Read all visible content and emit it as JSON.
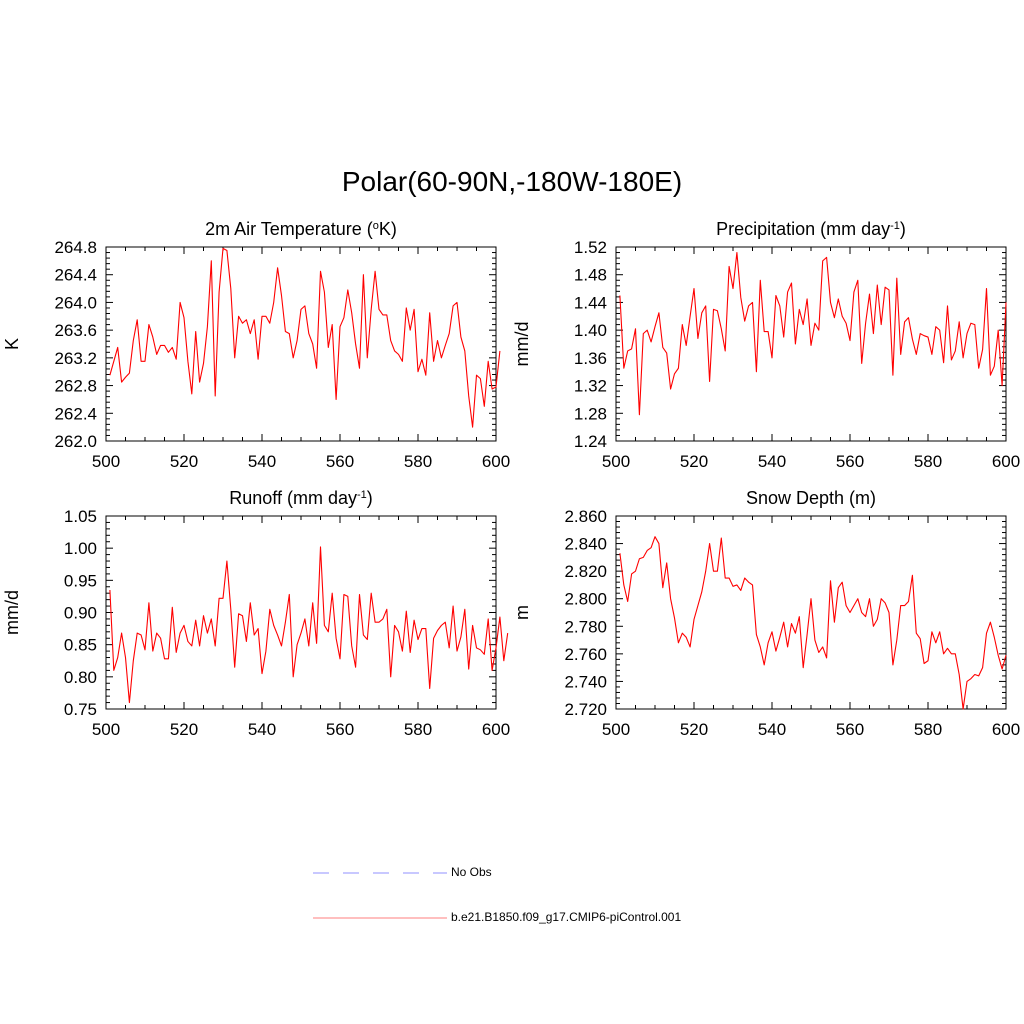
{
  "figure": {
    "title": "Polar(60-90N,-180W-180E)"
  },
  "legend": [
    {
      "label": "No Obs",
      "color": "#a6a6ff",
      "dash": "dashed"
    },
    {
      "label": "b.e21.B1850.f09_g17.CMIP6-piControl.001",
      "color": "#ff0000",
      "dash": "solid"
    }
  ],
  "chart_data": [
    {
      "type": "line",
      "title": "2m Air Temperature (",
      "title_sup": "o",
      "title_after": "K)",
      "xlabel": "",
      "ylabel": "K",
      "xlim": [
        500,
        600
      ],
      "ylim": [
        262.0,
        264.8
      ],
      "xticks": [
        "500",
        "520",
        "540",
        "560",
        "580",
        "600"
      ],
      "yticks": [
        "262.0",
        "262.4",
        "262.8",
        "263.2",
        "263.6",
        "264.0",
        "264.4",
        "264.8"
      ],
      "series": [
        {
          "name": "b.e21.B1850.f09_g17.CMIP6-piControl.001",
          "color": "#ff0000",
          "x_start": 501,
          "values": [
            262.95,
            263.15,
            263.35,
            262.85,
            262.92,
            262.98,
            263.45,
            263.75,
            263.15,
            263.15,
            263.68,
            263.5,
            263.25,
            263.38,
            263.38,
            263.28,
            263.35,
            263.18,
            264.0,
            263.78,
            263.15,
            262.68,
            263.58,
            262.85,
            263.12,
            263.65,
            264.6,
            262.65,
            264.15,
            264.78,
            264.75,
            264.2,
            263.2,
            263.8,
            263.7,
            263.75,
            263.55,
            263.75,
            263.18,
            263.8,
            263.8,
            263.7,
            264.0,
            264.5,
            264.1,
            263.58,
            263.55,
            263.2,
            263.45,
            263.9,
            263.95,
            263.55,
            263.4,
            263.05,
            264.45,
            264.15,
            263.35,
            263.68,
            262.6,
            263.65,
            263.78,
            264.18,
            263.85,
            263.4,
            263.05,
            264.4,
            263.2,
            263.9,
            264.45,
            263.9,
            263.82,
            263.82,
            263.45,
            263.3,
            263.25,
            263.15,
            263.92,
            263.6,
            263.9,
            263.0,
            263.18,
            262.95,
            263.85,
            263.15,
            263.45,
            263.2,
            263.38,
            263.55,
            263.95,
            264.0,
            263.5,
            263.3,
            262.65,
            262.2,
            262.95,
            262.9,
            262.5,
            263.15,
            262.75,
            262.78,
            263.3
          ]
        }
      ]
    },
    {
      "type": "line",
      "title": "Precipitation (mm day",
      "title_sup": "-1",
      "title_after": ")",
      "xlabel": "",
      "ylabel": "mm/d",
      "xlim": [
        500,
        600
      ],
      "ylim": [
        1.24,
        1.52
      ],
      "xticks": [
        "500",
        "520",
        "540",
        "560",
        "580",
        "600"
      ],
      "yticks": [
        "1.24",
        "1.28",
        "1.32",
        "1.36",
        "1.40",
        "1.44",
        "1.48",
        "1.52"
      ],
      "series": [
        {
          "name": "b.e21.B1850.f09_g17.CMIP6-piControl.001",
          "color": "#ff0000",
          "x_start": 501,
          "values": [
            1.45,
            1.345,
            1.37,
            1.373,
            1.402,
            1.278,
            1.395,
            1.4,
            1.383,
            1.405,
            1.425,
            1.375,
            1.367,
            1.315,
            1.337,
            1.345,
            1.408,
            1.378,
            1.42,
            1.46,
            1.388,
            1.425,
            1.435,
            1.326,
            1.43,
            1.428,
            1.402,
            1.37,
            1.492,
            1.46,
            1.512,
            1.447,
            1.413,
            1.435,
            1.44,
            1.34,
            1.472,
            1.398,
            1.398,
            1.36,
            1.45,
            1.435,
            1.39,
            1.455,
            1.468,
            1.38,
            1.43,
            1.408,
            1.445,
            1.378,
            1.41,
            1.4,
            1.5,
            1.505,
            1.44,
            1.418,
            1.445,
            1.42,
            1.41,
            1.385,
            1.455,
            1.472,
            1.352,
            1.41,
            1.452,
            1.395,
            1.465,
            1.408,
            1.462,
            1.458,
            1.335,
            1.475,
            1.365,
            1.412,
            1.418,
            1.387,
            1.365,
            1.395,
            1.392,
            1.39,
            1.365,
            1.405,
            1.4,
            1.353,
            1.435,
            1.357,
            1.37,
            1.412,
            1.36,
            1.395,
            1.41,
            1.408,
            1.345,
            1.372,
            1.46,
            1.335,
            1.348,
            1.4,
            1.32,
            1.44
          ]
        }
      ]
    },
    {
      "type": "line",
      "title": "Runoff (mm day",
      "title_sup": "-1",
      "title_after": ")",
      "xlabel": "",
      "ylabel": "mm/d",
      "xlim": [
        500,
        600
      ],
      "ylim": [
        0.75,
        1.05
      ],
      "xticks": [
        "500",
        "520",
        "540",
        "560",
        "580",
        "600"
      ],
      "yticks": [
        "0.75",
        "0.80",
        "0.85",
        "0.90",
        "0.95",
        "1.00",
        "1.05"
      ],
      "series": [
        {
          "name": "b.e21.B1850.f09_g17.CMIP6-piControl.001",
          "color": "#ff0000",
          "x_start": 501,
          "values": [
            0.935,
            0.81,
            0.83,
            0.868,
            0.83,
            0.76,
            0.825,
            0.868,
            0.865,
            0.842,
            0.915,
            0.84,
            0.868,
            0.86,
            0.828,
            0.828,
            0.908,
            0.838,
            0.868,
            0.88,
            0.855,
            0.848,
            0.888,
            0.848,
            0.895,
            0.868,
            0.89,
            0.848,
            0.922,
            0.922,
            0.98,
            0.905,
            0.815,
            0.898,
            0.895,
            0.855,
            0.915,
            0.865,
            0.875,
            0.805,
            0.84,
            0.905,
            0.88,
            0.865,
            0.848,
            0.885,
            0.928,
            0.8,
            0.85,
            0.868,
            0.89,
            0.848,
            0.915,
            0.852,
            1.002,
            0.88,
            0.87,
            0.93,
            0.86,
            0.828,
            0.928,
            0.925,
            0.848,
            0.815,
            0.928,
            0.865,
            0.858,
            0.93,
            0.885,
            0.885,
            0.89,
            0.905,
            0.8,
            0.88,
            0.87,
            0.84,
            0.902,
            0.838,
            0.888,
            0.858,
            0.875,
            0.875,
            0.782,
            0.86,
            0.872,
            0.88,
            0.885,
            0.845,
            0.91,
            0.84,
            0.862,
            0.905,
            0.812,
            0.88,
            0.845,
            0.842,
            0.835,
            0.89,
            0.81,
            0.845,
            0.893,
            0.825,
            0.868
          ]
        }
      ]
    },
    {
      "type": "line",
      "title": "Snow Depth (m)",
      "title_sup": "",
      "title_after": "",
      "xlabel": "",
      "ylabel": "m",
      "xlim": [
        500,
        600
      ],
      "ylim": [
        2.72,
        2.86
      ],
      "xticks": [
        "500",
        "520",
        "540",
        "560",
        "580",
        "600"
      ],
      "yticks": [
        "2.720",
        "2.740",
        "2.760",
        "2.780",
        "2.800",
        "2.820",
        "2.840",
        "2.860"
      ],
      "series": [
        {
          "name": "b.e21.B1850.f09_g17.CMIP6-piControl.001",
          "color": "#ff0000",
          "x_start": 501,
          "values": [
            2.833,
            2.81,
            2.798,
            2.818,
            2.82,
            2.829,
            2.83,
            2.835,
            2.837,
            2.845,
            2.84,
            2.808,
            2.826,
            2.8,
            2.786,
            2.768,
            2.775,
            2.772,
            2.765,
            2.785,
            2.795,
            2.805,
            2.82,
            2.84,
            2.82,
            2.82,
            2.844,
            2.815,
            2.815,
            2.809,
            2.81,
            2.806,
            2.815,
            2.812,
            2.81,
            2.774,
            2.765,
            2.752,
            2.768,
            2.776,
            2.762,
            2.772,
            2.783,
            2.765,
            2.782,
            2.775,
            2.787,
            2.75,
            2.774,
            2.8,
            2.77,
            2.761,
            2.765,
            2.757,
            2.813,
            2.783,
            2.808,
            2.812,
            2.795,
            2.79,
            2.795,
            2.8,
            2.79,
            2.787,
            2.8,
            2.78,
            2.785,
            2.8,
            2.797,
            2.79,
            2.752,
            2.77,
            2.795,
            2.795,
            2.798,
            2.817,
            2.775,
            2.771,
            2.753,
            2.755,
            2.776,
            2.768,
            2.776,
            2.76,
            2.764,
            2.76,
            2.76,
            2.745,
            2.72,
            2.74,
            2.742,
            2.745,
            2.744,
            2.75,
            2.775,
            2.783,
            2.772,
            2.759,
            2.749,
            2.759
          ]
        }
      ]
    }
  ]
}
